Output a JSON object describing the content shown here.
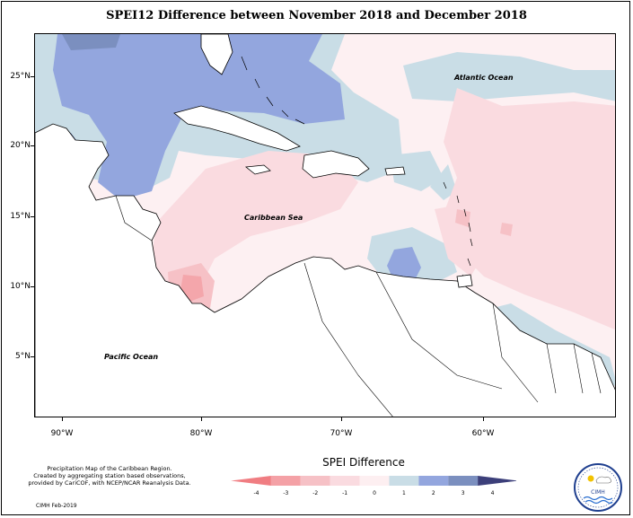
{
  "title": "SPEI12 Difference between November 2018 and December 2018",
  "map": {
    "lat_labels": [
      "25°N",
      "20°N",
      "15°N",
      "10°N",
      "5°N"
    ],
    "lon_labels": [
      "90°W",
      "80°W",
      "70°W",
      "60°W"
    ],
    "ocean_labels": {
      "atlantic": "Atlantic Ocean",
      "caribbean": "Caribbean Sea",
      "pacific": "Pacific Ocean"
    },
    "colors": {
      "neg4": "#f28a8f",
      "neg3": "#f4a6ab",
      "neg2": "#f6c1c6",
      "neg1": "#fadbe0",
      "zero": "#fdf0f2",
      "pos1": "#c9dde6",
      "pos2": "#93a6de",
      "pos3": "#7b8fbf",
      "pos4": "#3c3f7a"
    }
  },
  "legend": {
    "title": "SPEI Difference",
    "ticks": [
      "-4",
      "-3",
      "-2",
      "-1",
      "0",
      "1",
      "2",
      "3",
      "4"
    ],
    "colors": [
      "#f07d82",
      "#f4a1a6",
      "#f6c1c6",
      "#fadbe0",
      "#fdeff1",
      "#c9dde6",
      "#93a6de",
      "#7b8fbf",
      "#3c3f7a"
    ]
  },
  "credit": {
    "line1": "Precipitation Map of the Caribbean Region.",
    "line2": "Created by aggregating station based observations,",
    "line3": "provided by CariCOF, with NCEP/NCAR Reanalysis Data.",
    "stamp": "CIMH Feb-2019"
  },
  "logo": {
    "text": "CIMH"
  }
}
